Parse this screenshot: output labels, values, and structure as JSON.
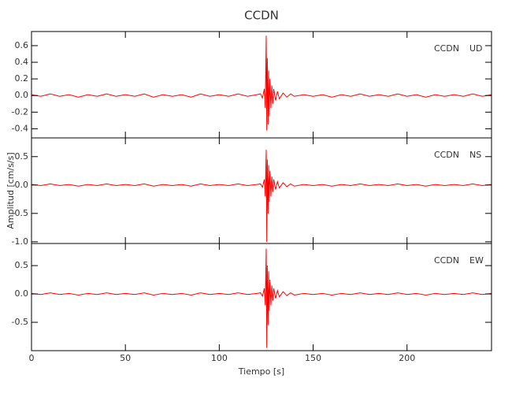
{
  "chart_data": {
    "type": "line",
    "title": "CCDN",
    "xlabel": "Tiempo [s]",
    "ylabel": "Amplitud [cm/s/s]",
    "x": [
      0,
      5,
      10,
      15,
      20,
      25,
      30,
      35,
      40,
      45,
      50,
      55,
      60,
      65,
      70,
      75,
      80,
      85,
      90,
      95,
      100,
      105,
      110,
      115,
      120,
      122,
      123,
      124,
      124.5,
      125,
      125.3,
      125.6,
      126,
      126.3,
      126.6,
      127,
      127.5,
      128,
      128.5,
      129,
      130,
      131,
      132,
      134,
      136,
      138,
      140,
      145,
      150,
      155,
      160,
      165,
      170,
      175,
      180,
      185,
      190,
      195,
      200,
      205,
      210,
      215,
      220,
      225,
      230,
      235,
      240,
      245
    ],
    "xlim": [
      0,
      245
    ],
    "xticks": [
      0,
      50,
      100,
      150,
      200
    ],
    "panels": [
      {
        "annotation": [
          "CCDN",
          "UD"
        ],
        "ylim": [
          -0.51,
          0.77
        ],
        "yticks": [
          -0.4,
          -0.2,
          {
            "value": 0,
            "label": "0.0"
          },
          0.2,
          0.4,
          0.6
        ],
        "series": [
          {
            "color": "#ff0000",
            "values": [
              0.01,
              -0.01,
              0.02,
              -0.01,
              0.01,
              -0.02,
              0.01,
              -0.01,
              0.02,
              -0.01,
              0.01,
              -0.01,
              0.02,
              -0.02,
              0.01,
              -0.01,
              0.01,
              -0.02,
              0.02,
              -0.01,
              0.01,
              -0.01,
              0.02,
              -0.01,
              0.01,
              0.02,
              -0.03,
              0.08,
              -0.15,
              0.72,
              -0.42,
              0.45,
              -0.35,
              0.3,
              -0.25,
              0.2,
              -0.15,
              0.12,
              -0.1,
              0.08,
              -0.06,
              0.05,
              -0.04,
              0.03,
              -0.02,
              0.02,
              -0.01,
              0.01,
              -0.01,
              0.01,
              -0.02,
              0.01,
              -0.01,
              0.02,
              -0.01,
              0.01,
              -0.01,
              0.02,
              -0.01,
              0.01,
              -0.02,
              0.01,
              -0.01,
              0.01,
              -0.01,
              0.02,
              -0.01,
              0.01
            ]
          }
        ]
      },
      {
        "annotation": [
          "CCDN",
          "NS"
        ],
        "ylim": [
          -1.03,
          0.83
        ],
        "yticks": [
          {
            "value": -1,
            "label": "-1.0"
          },
          -0.5,
          {
            "value": 0,
            "label": "0.0"
          },
          0.5
        ],
        "series": [
          {
            "color": "#ff0000",
            "values": [
              0.01,
              -0.01,
              0.02,
              -0.01,
              0.01,
              -0.02,
              0.01,
              -0.01,
              0.02,
              -0.01,
              0.01,
              -0.01,
              0.02,
              -0.02,
              0.01,
              -0.01,
              0.01,
              -0.02,
              0.02,
              -0.01,
              0.01,
              -0.01,
              0.02,
              -0.01,
              0.01,
              0.02,
              -0.04,
              0.1,
              -0.2,
              0.62,
              -1.0,
              0.45,
              -0.5,
              0.35,
              -0.3,
              0.25,
              -0.2,
              0.15,
              -0.12,
              0.1,
              -0.08,
              0.06,
              -0.05,
              0.04,
              -0.03,
              0.02,
              -0.02,
              0.01,
              -0.01,
              0.01,
              -0.02,
              0.01,
              -0.01,
              0.02,
              -0.01,
              0.01,
              -0.01,
              0.02,
              -0.01,
              0.01,
              -0.02,
              0.01,
              -0.01,
              0.01,
              -0.01,
              0.02,
              -0.01,
              0.01
            ]
          }
        ]
      },
      {
        "annotation": [
          "CCDN",
          "EW"
        ],
        "ylim": [
          -1.0,
          0.89
        ],
        "yticks": [
          -0.5,
          {
            "value": 0,
            "label": "0.0"
          },
          0.5
        ],
        "series": [
          {
            "color": "#ff0000",
            "values": [
              0.01,
              -0.01,
              0.02,
              -0.01,
              0.01,
              -0.02,
              0.01,
              -0.01,
              0.02,
              -0.01,
              0.01,
              -0.01,
              0.02,
              -0.02,
              0.01,
              -0.01,
              0.01,
              -0.02,
              0.02,
              -0.01,
              0.01,
              -0.01,
              0.02,
              -0.01,
              0.01,
              0.02,
              -0.04,
              0.1,
              -0.2,
              0.8,
              -0.95,
              0.5,
              -0.55,
              0.4,
              -0.3,
              0.25,
              -0.2,
              0.15,
              -0.12,
              0.1,
              -0.08,
              0.06,
              -0.05,
              0.04,
              -0.03,
              0.02,
              -0.02,
              0.01,
              -0.01,
              0.01,
              -0.02,
              0.01,
              -0.01,
              0.02,
              -0.01,
              0.01,
              -0.01,
              0.02,
              -0.01,
              0.01,
              -0.02,
              0.01,
              -0.01,
              0.01,
              -0.01,
              0.02,
              -0.01,
              0.01
            ]
          }
        ]
      }
    ]
  }
}
